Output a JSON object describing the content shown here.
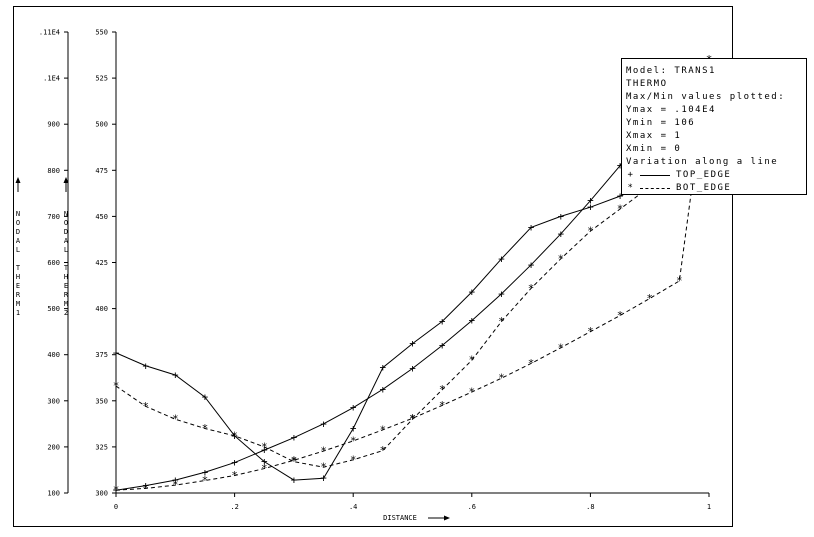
{
  "legend": {
    "lines": [
      "Model: TRANS1",
      "THERMO",
      "Max/Min values plotted:",
      "Ymax = .104E4",
      "Ymin = 106",
      "Xmax = 1",
      "Xmin = 0",
      "Variation along a line"
    ],
    "entries": [
      {
        "symbol": "+",
        "label": "TOP_EDGE",
        "style": "solid"
      },
      {
        "symbol": "*",
        "label": "BOT_EDGE",
        "style": "dashed"
      }
    ]
  },
  "chart_data": {
    "type": "line",
    "xlabel": "DISTANCE",
    "xlim": [
      0,
      1
    ],
    "x_ticks": [
      "0",
      ".2",
      ".4",
      ".6",
      ".8",
      "1"
    ],
    "axes": [
      {
        "id": "left",
        "label": "NODAL THERM1",
        "ylim": [
          100,
          1100
        ],
        "y_ticks": [
          "100",
          "200",
          "300",
          "400",
          "500",
          "600",
          "700",
          "800",
          "900",
          ".1E4",
          ".11E4"
        ]
      },
      {
        "id": "right",
        "label": "NODAL THERM2",
        "ylim": [
          300,
          550
        ],
        "y_ticks": [
          "300",
          "325",
          "350",
          "375",
          "400",
          "425",
          "450",
          "475",
          "500",
          "525",
          "550"
        ]
      }
    ],
    "series": [
      {
        "name": "TOP_EDGE",
        "axis": "left",
        "style": "solid",
        "marker": "+",
        "x": [
          0,
          0.05,
          0.1,
          0.15,
          0.2,
          0.25,
          0.3,
          0.35,
          0.4,
          0.45,
          0.5,
          0.55,
          0.6,
          0.65,
          0.7,
          0.75,
          0.8,
          0.85,
          0.9
        ],
        "y": [
          106,
          116,
          128,
          145,
          166,
          193,
          220,
          250,
          285,
          325,
          370,
          420,
          474,
          532,
          595,
          662,
          734,
          810,
          890
        ]
      },
      {
        "name": "BOT_EDGE",
        "axis": "left",
        "style": "dashed",
        "marker": "*",
        "x": [
          0,
          0.05,
          0.1,
          0.15,
          0.2,
          0.25,
          0.3,
          0.35,
          0.4,
          0.45,
          0.5,
          0.55,
          0.6,
          0.65,
          0.7,
          0.75,
          0.8,
          0.85,
          0.9,
          0.95,
          1.0
        ],
        "y": [
          106,
          110,
          117,
          127,
          138,
          153,
          171,
          191,
          213,
          237,
          262,
          290,
          319,
          349,
          381,
          415,
          450,
          485,
          522,
          560,
          1040
        ]
      },
      {
        "name": "TOP_EDGE",
        "axis": "right",
        "style": "solid",
        "marker": "+",
        "x": [
          0,
          0.05,
          0.1,
          0.15,
          0.2,
          0.25,
          0.3,
          0.35,
          0.4,
          0.45,
          0.5,
          0.55,
          0.6,
          0.65,
          0.7,
          0.75,
          0.8,
          0.85,
          0.9
        ],
        "y": [
          376,
          369,
          364,
          352,
          331,
          317,
          307,
          308,
          335,
          368,
          381,
          393,
          409,
          427,
          444,
          450,
          455,
          461,
          468
        ]
      },
      {
        "name": "BOT_EDGE",
        "axis": "right",
        "style": "dashed",
        "marker": "*",
        "x": [
          0,
          0.05,
          0.1,
          0.15,
          0.2,
          0.25,
          0.3,
          0.35,
          0.4,
          0.45,
          0.5,
          0.55,
          0.6,
          0.65,
          0.7,
          0.75,
          0.8,
          0.85,
          0.9
        ],
        "y": [
          358,
          347,
          340,
          335,
          331,
          325,
          317,
          314,
          318,
          323,
          340,
          356,
          372,
          393,
          411,
          427,
          442,
          454,
          466
        ]
      }
    ]
  }
}
